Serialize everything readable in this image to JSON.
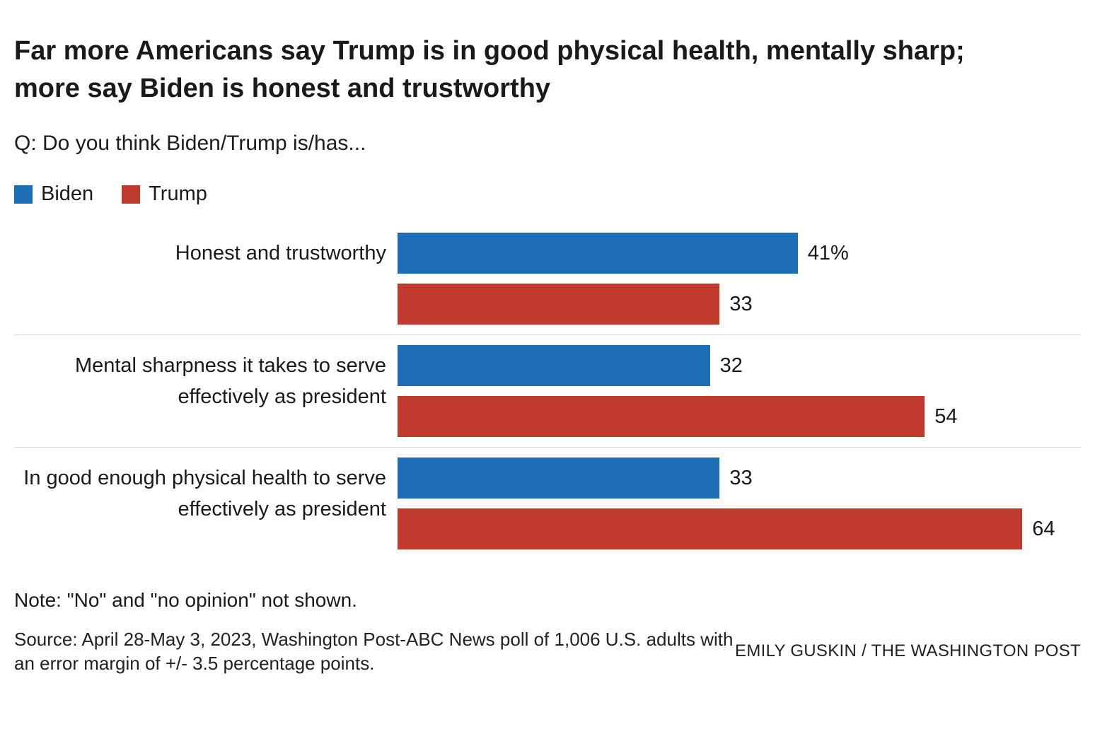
{
  "header": {
    "title": "Far more Americans say Trump is in good physical health, mentally sharp; more say Biden is honest and trustworthy",
    "question": "Q: Do you think Biden/Trump is/has..."
  },
  "legend": {
    "items": [
      {
        "label": "Biden",
        "color": "#1e6eb5"
      },
      {
        "label": "Trump",
        "color": "#c03a2e"
      }
    ]
  },
  "chart_data": {
    "type": "bar",
    "orientation": "horizontal",
    "title": "Far more Americans say Trump is in good physical health, mentally sharp; more say Biden is honest and trustworthy",
    "subtitle": "Q: Do you think Biden/Trump is/has...",
    "categories": [
      "Honest and trustworthy",
      "Mental sharpness it takes to serve effectively as president",
      "In good enough physical health to serve effectively as president"
    ],
    "series": [
      {
        "name": "Biden",
        "color": "#1e6eb5",
        "values": [
          41,
          32,
          33
        ]
      },
      {
        "name": "Trump",
        "color": "#c03a2e",
        "values": [
          33,
          54,
          64
        ]
      }
    ],
    "value_labels": [
      [
        "41%",
        "33"
      ],
      [
        "32",
        "54"
      ],
      [
        "33",
        "64"
      ]
    ],
    "unit": "percent",
    "xlim": [
      0,
      70
    ],
    "grid": false,
    "legend_position": "top-left"
  },
  "footer": {
    "note": "Note: \"No\" and \"no opinion\" not shown.",
    "source": "Source: April 28-May 3, 2023, Washington Post-ABC News poll of 1,006 U.S. adults with an error margin of +/- 3.5 percentage points.",
    "credit": "EMILY GUSKIN / THE WASHINGTON POST"
  }
}
